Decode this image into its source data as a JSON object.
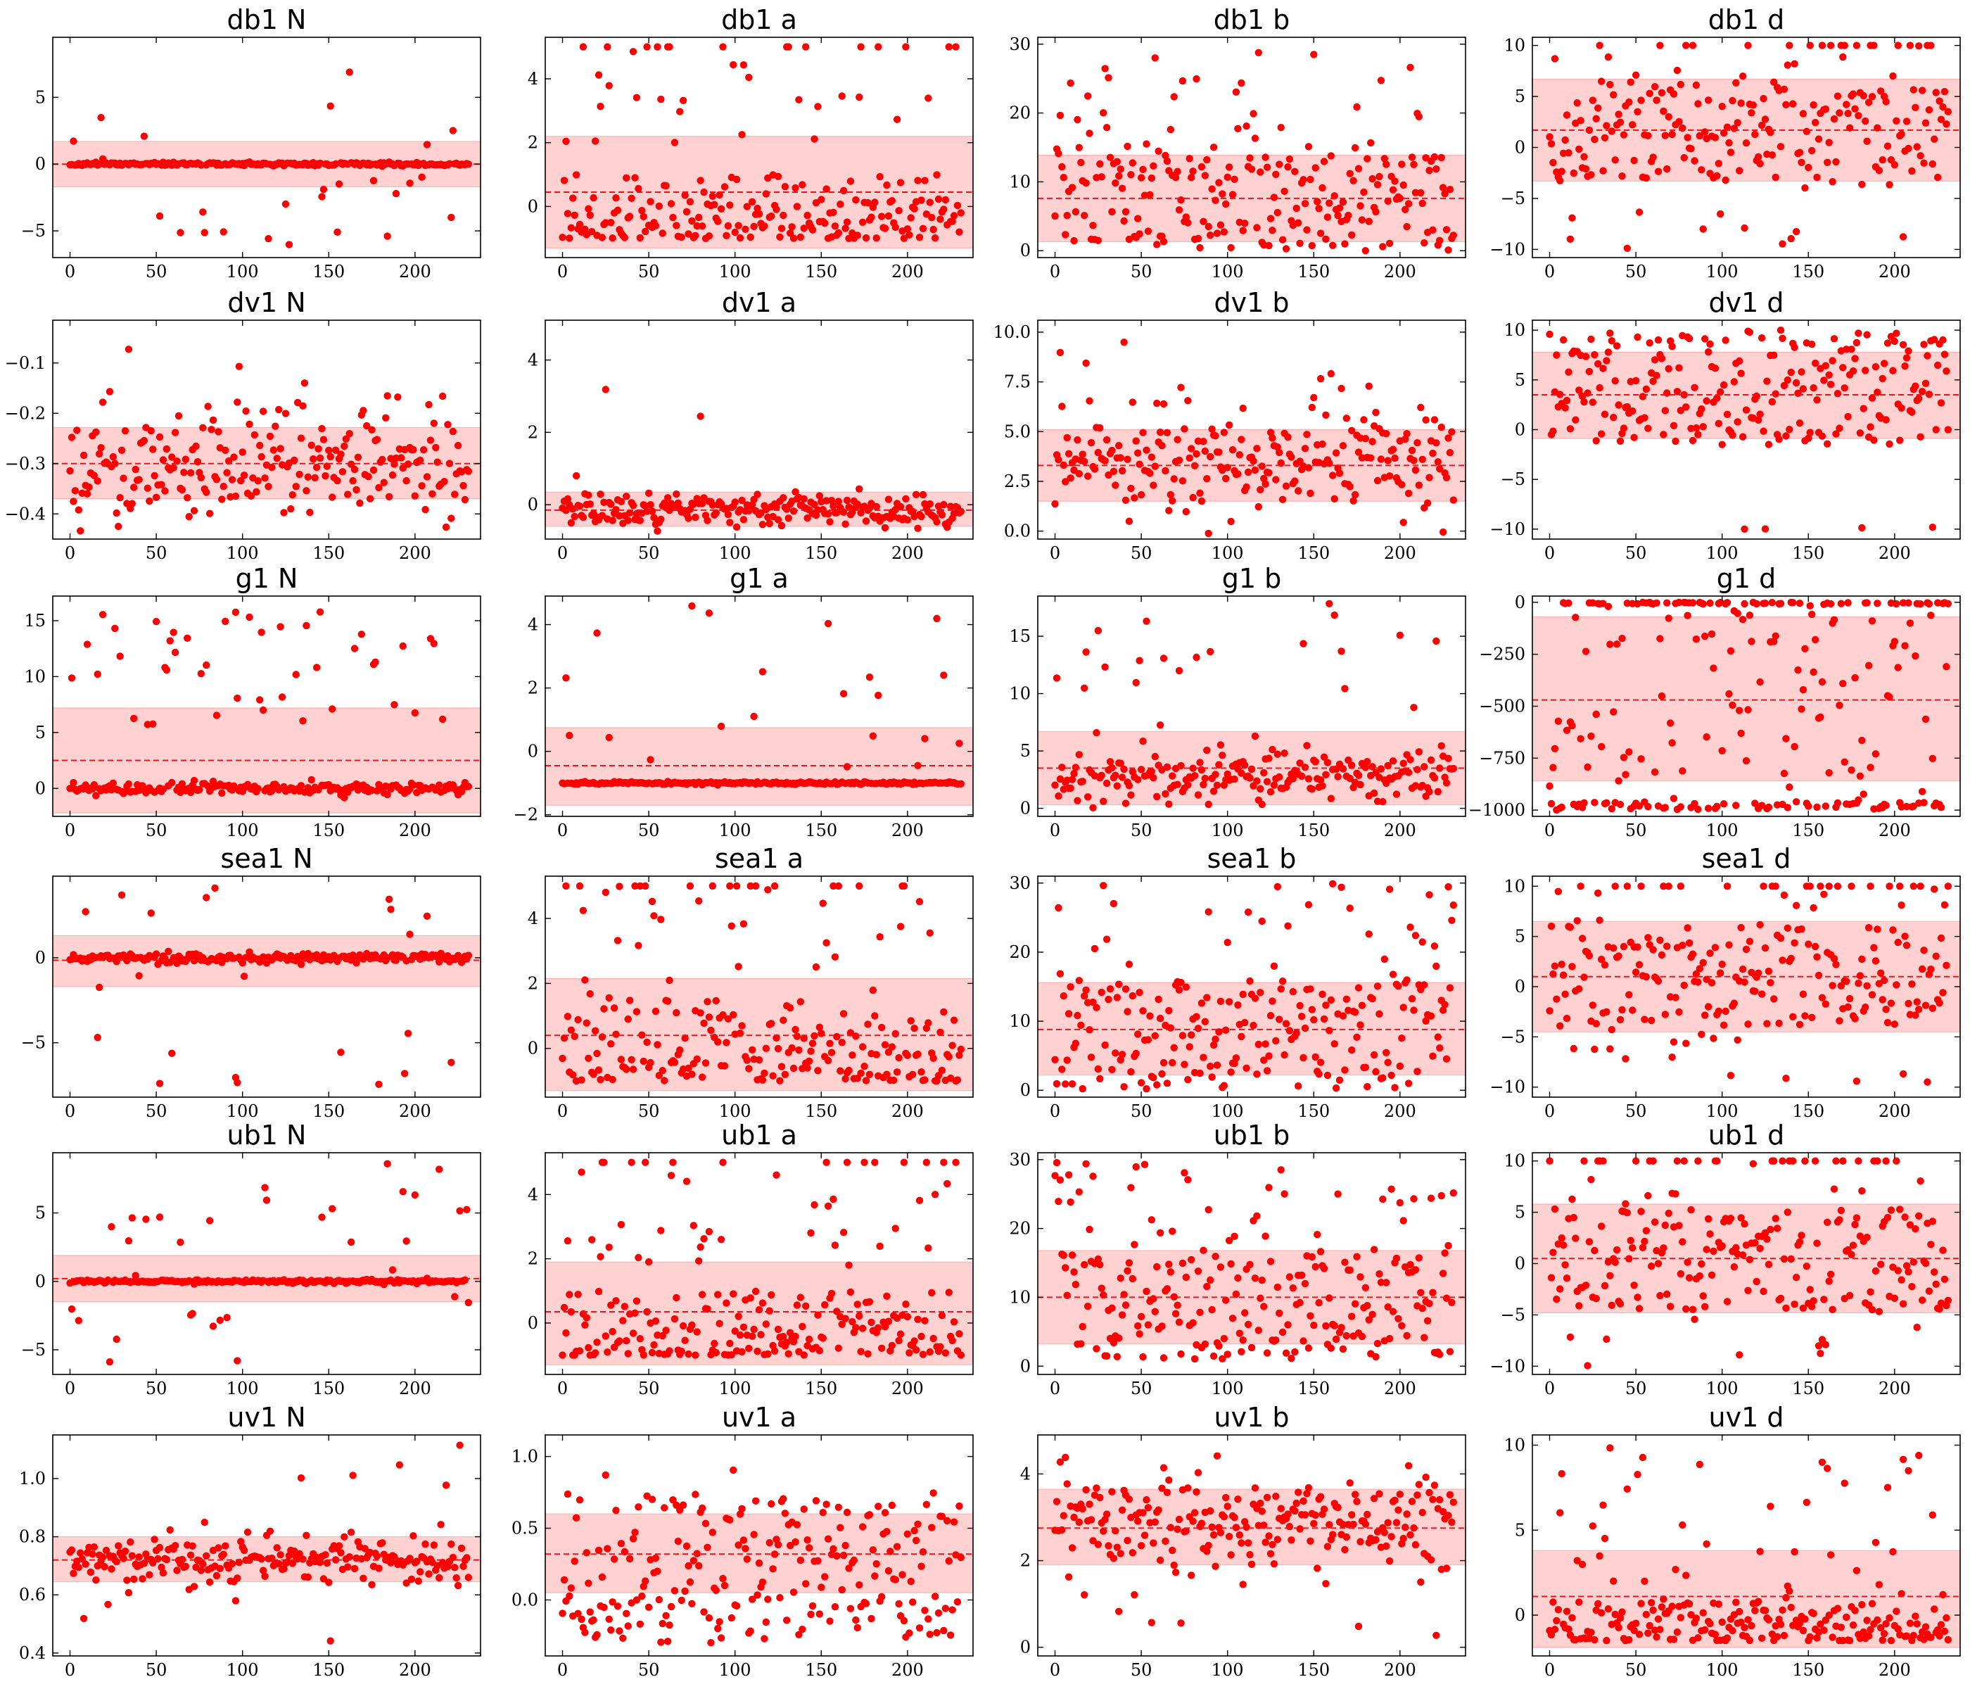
{
  "colors": {
    "point": "#ff0000",
    "band": "#ff0000",
    "mean_line": "#e8161b",
    "frame": "#000000",
    "background": "#ffffff"
  },
  "chart_data": [
    {
      "type": "scatter",
      "title": "db1 N",
      "xlim": [
        -10,
        238
      ],
      "ylim": [
        -7,
        9.5
      ],
      "xticks": [
        0,
        50,
        100,
        150,
        200
      ],
      "yticks": [
        -5,
        0,
        5
      ],
      "ytick_labels": [
        "−5",
        "0",
        "5"
      ],
      "mean": 0,
      "band": [
        -1.7,
        1.7
      ],
      "distribution": "spiky",
      "center": 0,
      "noise": 0.06,
      "outlier_rate": 0.12,
      "outlier_range": [
        -6.5,
        9
      ],
      "seed": 11
    },
    {
      "type": "scatter",
      "title": "db1 a",
      "xlim": [
        -10,
        238
      ],
      "ylim": [
        -1.6,
        5.3
      ],
      "xticks": [
        0,
        50,
        100,
        150,
        200
      ],
      "yticks": [
        0,
        2,
        4
      ],
      "ytick_labels": [
        "0",
        "2",
        "4"
      ],
      "mean": 0.45,
      "band": [
        -1.3,
        2.2
      ],
      "distribution": "skewed",
      "lo": -1,
      "hi": 1,
      "outlier_rate": 0.18,
      "outlier_range": [
        2,
        5
      ],
      "cap": 5,
      "seed": 12
    },
    {
      "type": "scatter",
      "title": "db1 b",
      "xlim": [
        -10,
        238
      ],
      "ylim": [
        -1,
        31
      ],
      "xticks": [
        0,
        50,
        100,
        150,
        200
      ],
      "yticks": [
        0,
        10,
        20,
        30
      ],
      "ytick_labels": [
        "0",
        "10",
        "20",
        "30"
      ],
      "mean": 7.6,
      "band": [
        1.3,
        13.9
      ],
      "distribution": "uniform",
      "lo": 0,
      "hi": 14,
      "outlier_rate": 0.15,
      "outlier_range": [
        14,
        30
      ],
      "seed": 13
    },
    {
      "type": "scatter",
      "title": "db1 d",
      "xlim": [
        -10,
        238
      ],
      "ylim": [
        -10.8,
        10.8
      ],
      "xticks": [
        0,
        50,
        100,
        150,
        200
      ],
      "yticks": [
        -10,
        -5,
        0,
        5,
        10
      ],
      "ytick_labels": [
        "−10",
        "−5",
        "0",
        "5",
        "10"
      ],
      "mean": 1.7,
      "band": [
        -3.3,
        6.7
      ],
      "distribution": "uniform",
      "lo": -3,
      "hi": 6.5,
      "outlier_rate": 0.28,
      "outlier_range": [
        -10,
        10
      ],
      "cap": 10,
      "seed": 14
    },
    {
      "type": "scatter",
      "title": "dv1 N",
      "xlim": [
        -10,
        238
      ],
      "ylim": [
        -0.45,
        -0.015
      ],
      "xticks": [
        0,
        50,
        100,
        150,
        200
      ],
      "yticks": [
        -0.4,
        -0.3,
        -0.2,
        -0.1
      ],
      "ytick_labels": [
        "−0.4",
        "−0.3",
        "−0.2",
        "−0.1"
      ],
      "mean": -0.3,
      "band": [
        -0.37,
        -0.228
      ],
      "distribution": "normal",
      "center": -0.3,
      "sd": 0.055,
      "outlier_rate": 0.05,
      "outlier_range": [
        -0.2,
        -0.02
      ],
      "seed": 21
    },
    {
      "type": "scatter",
      "title": "dv1 a",
      "xlim": [
        -10,
        238
      ],
      "ylim": [
        -0.95,
        5.1
      ],
      "xticks": [
        0,
        50,
        100,
        150,
        200
      ],
      "yticks": [
        0,
        2,
        4
      ],
      "ytick_labels": [
        "0",
        "2",
        "4"
      ],
      "mean": -0.15,
      "band": [
        -0.6,
        0.35
      ],
      "distribution": "normal",
      "center": -0.15,
      "sd": 0.22,
      "outlier_rate": 0.01,
      "outlier_range": [
        0.6,
        4.8
      ],
      "seed": 22
    },
    {
      "type": "scatter",
      "title": "dv1 b",
      "xlim": [
        -10,
        238
      ],
      "ylim": [
        -0.4,
        10.6
      ],
      "xticks": [
        0,
        50,
        100,
        150,
        200
      ],
      "yticks": [
        0,
        2.5,
        5,
        7.5,
        10
      ],
      "ytick_labels": [
        "0.0",
        "2.5",
        "5.0",
        "7.5",
        "10.0"
      ],
      "mean": 3.3,
      "band": [
        1.5,
        5.1
      ],
      "distribution": "normal",
      "center": 3.4,
      "sd": 1.3,
      "outlier_rate": 0.02,
      "outlier_range": [
        6,
        10.2
      ],
      "seed": 23
    },
    {
      "type": "scatter",
      "title": "dv1 d",
      "xlim": [
        -10,
        238
      ],
      "ylim": [
        -11,
        11
      ],
      "xticks": [
        0,
        50,
        100,
        150,
        200
      ],
      "yticks": [
        -10,
        -5,
        0,
        5,
        10
      ],
      "ytick_labels": [
        "−10",
        "−5",
        "0",
        "5",
        "10"
      ],
      "mean": 3.5,
      "band": [
        -0.9,
        7.8
      ],
      "distribution": "uniform",
      "lo": -1.5,
      "hi": 10,
      "outlier_rate": 0.015,
      "outlier_range": [
        -10,
        -9.8
      ],
      "seed": 24
    },
    {
      "type": "scatter",
      "title": "g1 N",
      "xlim": [
        -10,
        238
      ],
      "ylim": [
        -2.5,
        17.2
      ],
      "xticks": [
        0,
        50,
        100,
        150,
        200
      ],
      "yticks": [
        0,
        5,
        10,
        15
      ],
      "ytick_labels": [
        "0",
        "5",
        "10",
        "15"
      ],
      "mean": 2.5,
      "band": [
        -2.2,
        7.2
      ],
      "distribution": "spiky",
      "center": 0,
      "noise": 0.25,
      "outlier_rate": 0.2,
      "outlier_range": [
        5.5,
        16
      ],
      "seed": 31
    },
    {
      "type": "scatter",
      "title": "g1 a",
      "xlim": [
        -10,
        238
      ],
      "ylim": [
        -2.05,
        4.9
      ],
      "xticks": [
        0,
        50,
        100,
        150,
        200
      ],
      "yticks": [
        -2,
        0,
        2,
        4
      ],
      "ytick_labels": [
        "−2",
        "0",
        "2",
        "4"
      ],
      "mean": -0.45,
      "band": [
        -1.7,
        0.75
      ],
      "distribution": "spiky",
      "center": -1,
      "noise": 0.02,
      "outlier_rate": 0.12,
      "outlier_range": [
        -0.6,
        4.6
      ],
      "seed": 32
    },
    {
      "type": "scatter",
      "title": "g1 b",
      "xlim": [
        -10,
        238
      ],
      "ylim": [
        -0.7,
        18.5
      ],
      "xticks": [
        0,
        50,
        100,
        150,
        200
      ],
      "yticks": [
        0,
        5,
        10,
        15
      ],
      "ytick_labels": [
        "0",
        "5",
        "10",
        "15"
      ],
      "mean": 3.5,
      "band": [
        0.3,
        6.7
      ],
      "distribution": "normal",
      "center": 2.7,
      "sd": 1.2,
      "outlier_rate": 0.1,
      "outlier_range": [
        6,
        18
      ],
      "seed": 33
    },
    {
      "type": "scatter",
      "title": "g1 d",
      "xlim": [
        -10,
        238
      ],
      "ylim": [
        -1030,
        30
      ],
      "xticks": [
        0,
        50,
        100,
        150,
        200
      ],
      "yticks": [
        -1000,
        -750,
        -500,
        -250,
        0
      ],
      "ytick_labels": [
        "−1000",
        "−750",
        "−500",
        "−250",
        "0"
      ],
      "mean": -470,
      "band": [
        -860,
        -70
      ],
      "distribution": "bimodal",
      "lo": -1000,
      "hi": 0,
      "edge_rate": 0.6,
      "seed": 34
    },
    {
      "type": "scatter",
      "title": "sea1 N",
      "xlim": [
        -10,
        238
      ],
      "ylim": [
        -8.2,
        4.8
      ],
      "xticks": [
        0,
        50,
        100,
        150,
        200
      ],
      "yticks": [
        -5,
        0
      ],
      "ytick_labels": [
        "−5",
        "0"
      ],
      "mean": -0.15,
      "band": [
        -1.7,
        1.3
      ],
      "distribution": "spiky",
      "center": 0,
      "noise": 0.15,
      "outlier_rate": 0.12,
      "outlier_range": [
        -7.5,
        4.5
      ],
      "seed": 41
    },
    {
      "type": "scatter",
      "title": "sea1 a",
      "xlim": [
        -10,
        238
      ],
      "ylim": [
        -1.5,
        5.3
      ],
      "xticks": [
        0,
        50,
        100,
        150,
        200
      ],
      "yticks": [
        0,
        2,
        4
      ],
      "ytick_labels": [
        "0",
        "2",
        "4"
      ],
      "mean": 0.4,
      "band": [
        -1.3,
        2.15
      ],
      "distribution": "skewed",
      "lo": -1,
      "hi": 1.5,
      "outlier_rate": 0.2,
      "outlier_range": [
        1.5,
        5
      ],
      "cap": 5,
      "seed": 42
    },
    {
      "type": "scatter",
      "title": "sea1 b",
      "xlim": [
        -10,
        238
      ],
      "ylim": [
        -1,
        31
      ],
      "xticks": [
        0,
        50,
        100,
        150,
        200
      ],
      "yticks": [
        0,
        10,
        20,
        30
      ],
      "ytick_labels": [
        "0",
        "10",
        "20",
        "30"
      ],
      "mean": 8.8,
      "band": [
        2.2,
        15.6
      ],
      "distribution": "uniform",
      "lo": 0,
      "hi": 16,
      "outlier_rate": 0.15,
      "outlier_range": [
        16,
        30
      ],
      "seed": 43
    },
    {
      "type": "scatter",
      "title": "sea1 d",
      "xlim": [
        -10,
        238
      ],
      "ylim": [
        -11,
        11
      ],
      "xticks": [
        0,
        50,
        100,
        150,
        200
      ],
      "yticks": [
        -10,
        -5,
        0,
        5,
        10
      ],
      "ytick_labels": [
        "−10",
        "−5",
        "0",
        "5",
        "10"
      ],
      "mean": 1,
      "band": [
        -4.5,
        6.5
      ],
      "distribution": "uniform",
      "lo": -4,
      "hi": 6,
      "outlier_rate": 0.3,
      "outlier_range": [
        -10,
        10
      ],
      "cap": 10,
      "seed": 44
    },
    {
      "type": "scatter",
      "title": "ub1 N",
      "xlim": [
        -10,
        238
      ],
      "ylim": [
        -6.8,
        9.4
      ],
      "xticks": [
        0,
        50,
        100,
        150,
        200
      ],
      "yticks": [
        -5,
        0,
        5
      ],
      "ytick_labels": [
        "−5",
        "0",
        "5"
      ],
      "mean": 0.2,
      "band": [
        -1.5,
        1.9
      ],
      "distribution": "spiky",
      "center": 0,
      "noise": 0.06,
      "outlier_rate": 0.12,
      "outlier_range": [
        -6,
        9
      ],
      "seed": 51
    },
    {
      "type": "scatter",
      "title": "ub1 a",
      "xlim": [
        -10,
        238
      ],
      "ylim": [
        -1.6,
        5.3
      ],
      "xticks": [
        0,
        50,
        100,
        150,
        200
      ],
      "yticks": [
        0,
        2,
        4
      ],
      "ytick_labels": [
        "0",
        "2",
        "4"
      ],
      "mean": 0.35,
      "band": [
        -1.3,
        1.9
      ],
      "distribution": "skewed",
      "lo": -1,
      "hi": 1,
      "outlier_rate": 0.18,
      "outlier_range": [
        1.5,
        5
      ],
      "cap": 5,
      "seed": 52
    },
    {
      "type": "scatter",
      "title": "ub1 b",
      "xlim": [
        -10,
        238
      ],
      "ylim": [
        -1.2,
        31
      ],
      "xticks": [
        0,
        50,
        100,
        150,
        200
      ],
      "yticks": [
        0,
        10,
        20,
        30
      ],
      "ytick_labels": [
        "0",
        "10",
        "20",
        "30"
      ],
      "mean": 10,
      "band": [
        3.2,
        16.8
      ],
      "distribution": "uniform",
      "lo": 1,
      "hi": 17,
      "outlier_rate": 0.15,
      "outlier_range": [
        17,
        30
      ],
      "seed": 53
    },
    {
      "type": "scatter",
      "title": "ub1 d",
      "xlim": [
        -10,
        238
      ],
      "ylim": [
        -10.8,
        10.8
      ],
      "xticks": [
        0,
        50,
        100,
        150,
        200
      ],
      "yticks": [
        -10,
        -5,
        0,
        5,
        10
      ],
      "ytick_labels": [
        "−10",
        "−5",
        "0",
        "5",
        "10"
      ],
      "mean": 0.5,
      "band": [
        -4.8,
        5.8
      ],
      "distribution": "uniform",
      "lo": -4.5,
      "hi": 5.5,
      "outlier_rate": 0.3,
      "outlier_range": [
        -10,
        10
      ],
      "cap": 10,
      "seed": 54
    },
    {
      "type": "scatter",
      "title": "uv1 N",
      "xlim": [
        -10,
        238
      ],
      "ylim": [
        0.39,
        1.15
      ],
      "xticks": [
        0,
        50,
        100,
        150,
        200
      ],
      "yticks": [
        0.4,
        0.6,
        0.8,
        1.0
      ],
      "ytick_labels": [
        "0.4",
        "0.6",
        "0.8",
        "1.0"
      ],
      "mean": 0.72,
      "band": [
        0.645,
        0.8
      ],
      "distribution": "normal",
      "center": 0.72,
      "sd": 0.045,
      "outlier_rate": 0.06,
      "outlier_range": [
        0.42,
        1.12
      ],
      "seed": 61
    },
    {
      "type": "scatter",
      "title": "uv1 a",
      "xlim": [
        -10,
        238
      ],
      "ylim": [
        -0.39,
        1.15
      ],
      "xticks": [
        0,
        50,
        100,
        150,
        200
      ],
      "yticks": [
        0,
        0.5,
        1.0
      ],
      "ytick_labels": [
        "0.0",
        "0.5",
        "1.0"
      ],
      "mean": 0.32,
      "band": [
        0.05,
        0.6
      ],
      "distribution": "uniform",
      "lo": -0.3,
      "hi": 0.75,
      "outlier_rate": 0.02,
      "outlier_range": [
        0.8,
        1.05
      ],
      "seed": 62
    },
    {
      "type": "scatter",
      "title": "uv1 b",
      "xlim": [
        -10,
        238
      ],
      "ylim": [
        -0.2,
        4.9
      ],
      "xticks": [
        0,
        50,
        100,
        150,
        200
      ],
      "yticks": [
        0,
        2,
        4
      ],
      "ytick_labels": [
        "0",
        "2",
        "4"
      ],
      "mean": 2.75,
      "band": [
        1.9,
        3.65
      ],
      "distribution": "normal",
      "center": 2.95,
      "sd": 0.55,
      "outlier_rate": 0.04,
      "outlier_range": [
        0,
        4.6
      ],
      "seed": 63
    },
    {
      "type": "scatter",
      "title": "uv1 d",
      "xlim": [
        -10,
        238
      ],
      "ylim": [
        -2.4,
        10.6
      ],
      "xticks": [
        0,
        50,
        100,
        150,
        200
      ],
      "yticks": [
        0,
        5,
        10
      ],
      "ytick_labels": [
        "0",
        "5",
        "10"
      ],
      "mean": 1.1,
      "band": [
        -1.9,
        3.8
      ],
      "distribution": "skewed",
      "lo": -1.5,
      "hi": 0.8,
      "outlier_rate": 0.18,
      "outlier_range": [
        0.8,
        10
      ],
      "seed": 64
    }
  ]
}
